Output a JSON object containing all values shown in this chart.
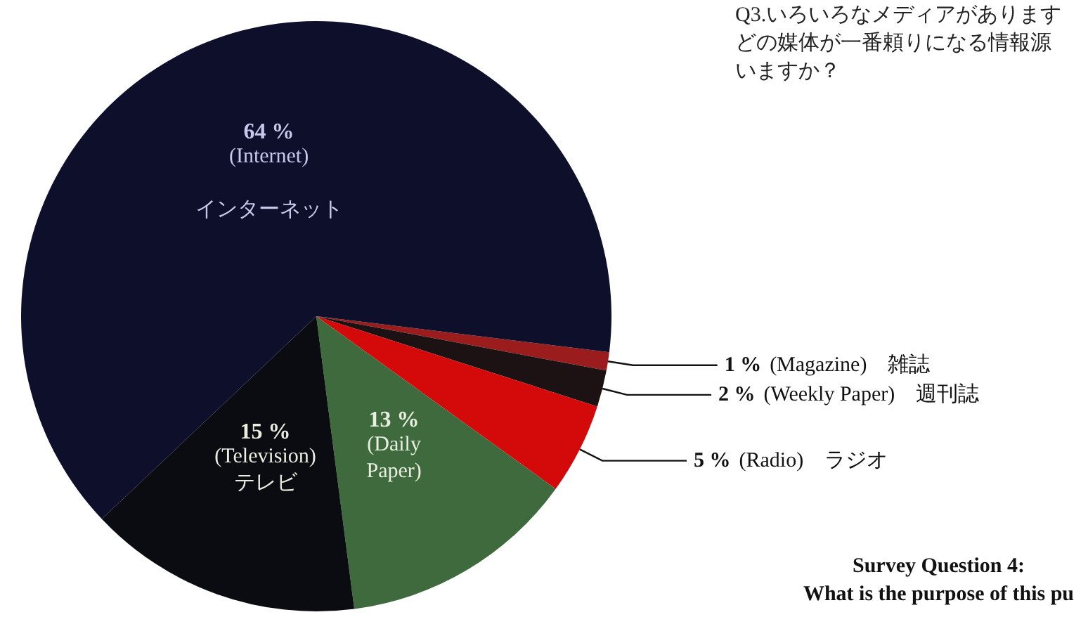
{
  "chart_data": {
    "type": "pie",
    "title": "Q3.いろいろなメディアがありますどの媒体が一番頼りになる情報源いますか？",
    "categories": [
      "(Magazine)　雑誌",
      "(Weekly Paper)　週刊誌",
      "(Radio)　ラジオ",
      "(Daily\nPaper)",
      "(Television)\nテレビ",
      "(Internet)\n\nインターネット"
    ],
    "values": [
      1,
      2,
      5,
      13,
      15,
      64
    ],
    "value_labels": [
      "1 %",
      "2 %",
      "5 %",
      "13 %",
      "15 %",
      "64 %"
    ],
    "colors": [
      "#9a1c1c",
      "#1c1214",
      "#d40a0a",
      "#3f6a3d",
      "#0b0b12",
      "#0d0f2b"
    ],
    "annotations": [
      "Survey Question 4:\nWhat is the purpose of this pu"
    ]
  }
}
